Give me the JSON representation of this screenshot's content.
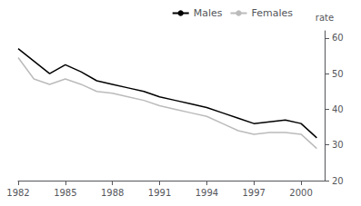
{
  "chart_data": {
    "type": "line",
    "ylabel": "rate",
    "x": [
      1982,
      1983,
      1984,
      1985,
      1986,
      1987,
      1988,
      1989,
      1990,
      1991,
      1992,
      1993,
      1994,
      1995,
      1996,
      1997,
      1998,
      1999,
      2000,
      2001
    ],
    "series": [
      {
        "name": "Males",
        "color": "#000000",
        "values": [
          57.0,
          53.5,
          50.0,
          52.5,
          50.5,
          48.0,
          47.0,
          46.0,
          45.0,
          43.5,
          42.5,
          41.5,
          40.5,
          39.0,
          37.5,
          36.0,
          36.5,
          37.0,
          36.0,
          32.0
        ]
      },
      {
        "name": "Females",
        "color": "#bbbbbb",
        "values": [
          54.5,
          48.5,
          47.0,
          48.5,
          47.0,
          45.0,
          44.5,
          43.5,
          42.5,
          41.0,
          40.0,
          39.0,
          38.0,
          36.0,
          34.0,
          33.0,
          33.5,
          33.5,
          33.0,
          29.0
        ]
      }
    ],
    "xlim": [
      1982,
      2001.5
    ],
    "xticks": [
      1982,
      1985,
      1988,
      1991,
      1994,
      1997,
      2000
    ],
    "ylim": [
      20,
      62
    ],
    "yticks": [
      20,
      30,
      40,
      50,
      60
    ],
    "legend": "upper right",
    "grid": false
  }
}
